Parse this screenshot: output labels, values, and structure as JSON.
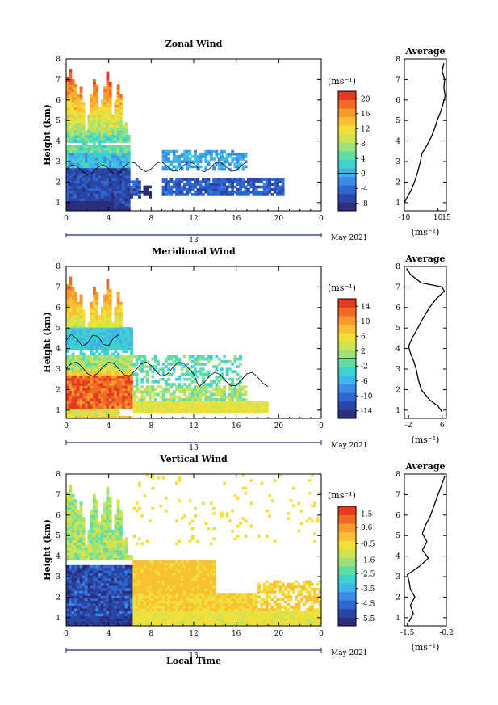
{
  "figure": {
    "x_label": "Local Time",
    "date_label": "13",
    "month_label": "May 2021",
    "unit_label": "(ms⁻¹)",
    "avg_title": "Average",
    "y_label": "Height (km)"
  },
  "chart_data": [
    {
      "type": "heatmap",
      "title": "Zonal Wind",
      "xlabel": "",
      "ylabel": "Height (km)",
      "x_ticks": [
        "0",
        "4",
        "8",
        "12",
        "16",
        "20",
        "0"
      ],
      "y_ticks": [
        "1",
        "2",
        "3",
        "4",
        "5",
        "6",
        "7",
        "8"
      ],
      "xlim": [
        0,
        24
      ],
      "ylim": [
        0.6,
        8
      ],
      "colorbar": {
        "label": "(ms⁻¹)",
        "ticks": [
          "20",
          "16",
          "12",
          "8",
          "4",
          "0",
          "-4",
          "-8"
        ],
        "range": [
          -10,
          22
        ],
        "zero_line": 0
      },
      "average_profile": {
        "title": "Average",
        "xlabel": "(ms⁻¹)",
        "x_ticks": [
          "-10",
          "10",
          "15"
        ],
        "xlim": [
          -10,
          15
        ],
        "heights": [
          1.0,
          1.3,
          1.6,
          2.0,
          2.5,
          3.0,
          3.4,
          3.8,
          4.2,
          4.6,
          5.0,
          5.4,
          5.8,
          6.2,
          6.6,
          7.0,
          7.4,
          7.8
        ],
        "values": [
          -10,
          -8,
          -6,
          -4,
          -2,
          -0.5,
          0.5,
          3.5,
          6.0,
          8.0,
          9.5,
          11.5,
          13.0,
          14.3,
          13.5,
          14.0,
          12.5,
          13.5
        ]
      }
    },
    {
      "type": "heatmap",
      "title": "Meridional Wind",
      "xlabel": "",
      "ylabel": "Height (km)",
      "x_ticks": [
        "0",
        "4",
        "8",
        "12",
        "16",
        "20",
        "0"
      ],
      "y_ticks": [
        "1",
        "2",
        "3",
        "4",
        "5",
        "6",
        "7",
        "8"
      ],
      "xlim": [
        0,
        24
      ],
      "ylim": [
        0.6,
        8
      ],
      "colorbar": {
        "label": "(ms⁻¹)",
        "ticks": [
          "14",
          "10",
          "6",
          "2",
          "-2",
          "-6",
          "-10",
          "-14"
        ],
        "range": [
          -16,
          16
        ],
        "zero_line": 0
      },
      "average_profile": {
        "title": "Average",
        "xlabel": "(ms⁻¹)",
        "x_ticks": [
          "-2",
          "6"
        ],
        "xlim": [
          -3,
          7
        ],
        "heights": [
          0.9,
          1.2,
          1.5,
          2.0,
          2.5,
          3.0,
          3.4,
          3.8,
          4.1,
          4.5,
          5.0,
          5.5,
          6.0,
          6.4,
          6.8,
          7.0,
          7.2,
          7.6,
          7.9
        ],
        "values": [
          6.0,
          5.0,
          3.0,
          1.0,
          0.3,
          -0.2,
          -0.8,
          -1.6,
          -2.0,
          -1.2,
          0.2,
          1.5,
          3.0,
          4.5,
          6.5,
          6.0,
          1.0,
          -1.5,
          -2.5
        ]
      }
    },
    {
      "type": "heatmap",
      "title": "Vertical Wind",
      "xlabel": "Local Time",
      "ylabel": "Height (km)",
      "x_ticks": [
        "0",
        "4",
        "8",
        "12",
        "16",
        "20",
        "0"
      ],
      "y_ticks": [
        "1",
        "2",
        "3",
        "4",
        "5",
        "6",
        "7",
        "8"
      ],
      "xlim": [
        0,
        24
      ],
      "ylim": [
        0.6,
        8
      ],
      "colorbar": {
        "label": "(ms⁻¹)",
        "ticks": [
          "1.5",
          "0.6",
          "-0.5",
          "-1.6",
          "-2.5",
          "-3.5",
          "-4.5",
          "-5.5"
        ],
        "range": [
          -6,
          2
        ],
        "zero_line": null
      },
      "average_profile": {
        "title": "Average",
        "xlabel": "(ms⁻¹)",
        "x_ticks": [
          "-1.5",
          "-0.2"
        ],
        "xlim": [
          -1.6,
          -0.2
        ],
        "heights": [
          0.8,
          1.2,
          1.6,
          2.0,
          2.4,
          2.8,
          3.1,
          3.5,
          3.9,
          4.3,
          4.7,
          5.1,
          5.5,
          5.9,
          6.3,
          6.7,
          7.1,
          7.5,
          7.9
        ],
        "values": [
          -1.45,
          -1.3,
          -1.4,
          -1.25,
          -1.4,
          -1.45,
          -1.5,
          -1.1,
          -0.8,
          -1.0,
          -0.85,
          -1.0,
          -0.9,
          -0.75,
          -0.65,
          -0.55,
          -0.45,
          -0.35,
          -0.25
        ]
      }
    }
  ]
}
